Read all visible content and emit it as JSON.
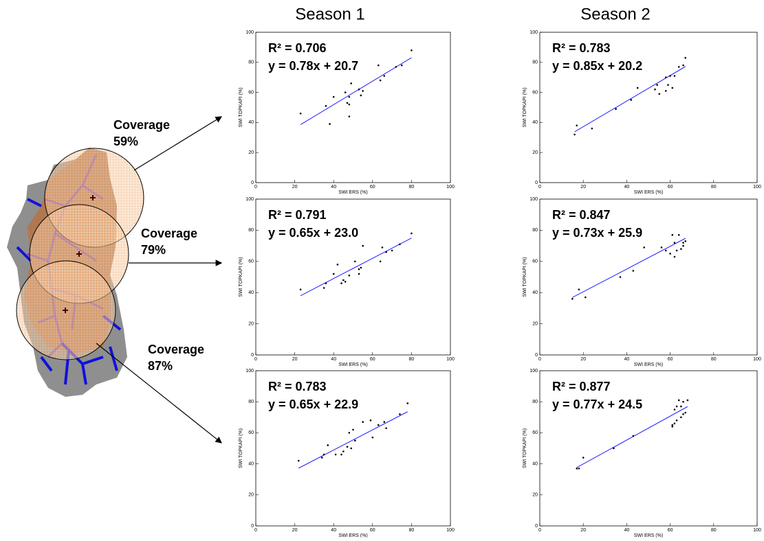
{
  "columns": [
    "Season 1",
    "Season 2"
  ],
  "coverage": [
    [
      "Coverage",
      "59%"
    ],
    [
      "Coverage",
      "79%"
    ],
    [
      "Coverage",
      "87%"
    ]
  ],
  "chart_data": [
    {
      "type": "scatter",
      "xlabel": "SWI ERS (%)",
      "ylabel": "SWI TOPKAPI (%)",
      "annotations": [
        "R² = 0.706",
        "y = 0.78x + 20.7"
      ],
      "x": [
        23,
        36,
        38,
        40,
        46,
        47,
        48,
        48,
        49,
        48,
        53,
        54,
        55,
        63,
        64,
        66,
        72,
        75,
        80
      ],
      "y": [
        46,
        51,
        39,
        57,
        60,
        53,
        44,
        57,
        66,
        52,
        62,
        58,
        61,
        78,
        68,
        71,
        77,
        78,
        88
      ],
      "fit": {
        "x": [
          23,
          80
        ],
        "y": [
          38.6,
          83.1
        ],
        "color": "#0000ff"
      },
      "color": "#000000",
      "xlim": [
        0,
        100
      ],
      "ylim": [
        0,
        100
      ],
      "xticks": [
        0,
        20,
        40,
        60,
        80,
        100
      ],
      "yticks": [
        0,
        20,
        40,
        60,
        80,
        100
      ]
    },
    {
      "type": "scatter",
      "xlabel": "SWI ERS (%)",
      "ylabel": "SWI TOPKAPI (%)",
      "annotations": [
        "R² = 0.783",
        "y = 0.85x + 20.2"
      ],
      "x": [
        16,
        17,
        24,
        35,
        42,
        45,
        53,
        54,
        55,
        58,
        58,
        59,
        60,
        61,
        62,
        64,
        66,
        67
      ],
      "y": [
        32,
        38,
        36,
        49,
        55,
        63,
        62,
        65,
        59,
        61,
        70,
        65,
        71,
        63,
        71,
        77,
        78,
        83
      ],
      "fit": {
        "x": [
          16,
          67
        ],
        "y": [
          33.8,
          77.2
        ],
        "color": "#0000ff"
      },
      "color": "#000000",
      "xlim": [
        0,
        100
      ],
      "ylim": [
        0,
        100
      ],
      "xticks": [
        0,
        20,
        40,
        60,
        80,
        100
      ],
      "yticks": [
        0,
        20,
        40,
        60,
        80,
        100
      ]
    },
    {
      "type": "scatter",
      "xlabel": "SWI ERS (%)",
      "ylabel": "SWI TOPKAPI (%)",
      "annotations": [
        "R² = 0.791",
        "y = 0.65x + 23.0"
      ],
      "x": [
        23,
        35,
        36,
        40,
        42,
        44,
        45,
        46,
        48,
        51,
        53,
        53,
        54,
        55,
        64,
        65,
        67,
        70,
        74,
        80
      ],
      "y": [
        42,
        43,
        46,
        52,
        58,
        46,
        48,
        47,
        51,
        60,
        52,
        55,
        56,
        70,
        60,
        69,
        66,
        67,
        71,
        78
      ],
      "fit": {
        "x": [
          23,
          80
        ],
        "y": [
          38.0,
          75.0
        ],
        "color": "#0000ff"
      },
      "color": "#000000",
      "xlim": [
        0,
        100
      ],
      "ylim": [
        0,
        100
      ],
      "xticks": [
        0,
        20,
        40,
        60,
        80,
        100
      ],
      "yticks": [
        0,
        20,
        40,
        60,
        80,
        100
      ]
    },
    {
      "type": "scatter",
      "xlabel": "SWI ERS (%)",
      "ylabel": "SWI TOPKAPI (%)",
      "annotations": [
        "R² = 0.847",
        "y = 0.73x + 25.9"
      ],
      "x": [
        15,
        18,
        21,
        37,
        43,
        48,
        56,
        58,
        60,
        61,
        62,
        62,
        63,
        64,
        65,
        66,
        66,
        67
      ],
      "y": [
        36,
        42,
        37,
        50,
        54,
        69,
        69,
        67,
        65,
        77,
        63,
        72,
        67,
        77,
        68,
        70,
        72,
        73
      ],
      "fit": {
        "x": [
          15,
          67
        ],
        "y": [
          36.9,
          74.8
        ],
        "color": "#0000ff"
      },
      "color": "#000000",
      "xlim": [
        0,
        100
      ],
      "ylim": [
        0,
        100
      ],
      "xticks": [
        0,
        20,
        40,
        60,
        80,
        100
      ],
      "yticks": [
        0,
        20,
        40,
        60,
        80,
        100
      ]
    },
    {
      "type": "scatter",
      "xlabel": "SWI ERS (%)",
      "ylabel": "SWI TOPKAPI (%)",
      "annotations": [
        "R² = 0.783",
        "y = 0.65x + 22.9"
      ],
      "x": [
        22,
        34,
        35,
        37,
        41,
        44,
        45,
        47,
        48,
        49,
        50,
        51,
        55,
        59,
        60,
        63,
        66,
        67,
        74,
        78
      ],
      "y": [
        42,
        44,
        46,
        52,
        46,
        46,
        48,
        51,
        60,
        50,
        62,
        55,
        67,
        68,
        57,
        65,
        67,
        63,
        72,
        79
      ],
      "fit": {
        "x": [
          22,
          78
        ],
        "y": [
          37.2,
          73.6
        ],
        "color": "#0000ff"
      },
      "color": "#000000",
      "xlim": [
        0,
        100
      ],
      "ylim": [
        0,
        100
      ],
      "xticks": [
        0,
        20,
        40,
        60,
        80,
        100
      ],
      "yticks": [
        0,
        20,
        40,
        60,
        80,
        100
      ]
    },
    {
      "type": "scatter",
      "xlabel": "SWI ERS (%)",
      "ylabel": "SWI TOPKAPI (%)",
      "annotations": [
        "R² = 0.877",
        "y = 0.77x + 24.5"
      ],
      "x": [
        17,
        18,
        20,
        34,
        43,
        61,
        61,
        62,
        62,
        63,
        63,
        64,
        65,
        65,
        66,
        66,
        67,
        68
      ],
      "y": [
        37,
        37,
        44,
        50,
        58,
        65,
        64,
        66,
        75,
        77,
        68,
        81,
        70,
        77,
        72,
        80,
        73,
        81
      ],
      "fit": {
        "x": [
          17,
          68
        ],
        "y": [
          37.6,
          76.9
        ],
        "color": "#0000ff"
      },
      "color": "#000000",
      "xlim": [
        0,
        100
      ],
      "ylim": [
        0,
        100
      ],
      "xticks": [
        0,
        20,
        40,
        60,
        80,
        100
      ],
      "yticks": [
        0,
        20,
        40,
        60,
        80,
        100
      ]
    }
  ]
}
